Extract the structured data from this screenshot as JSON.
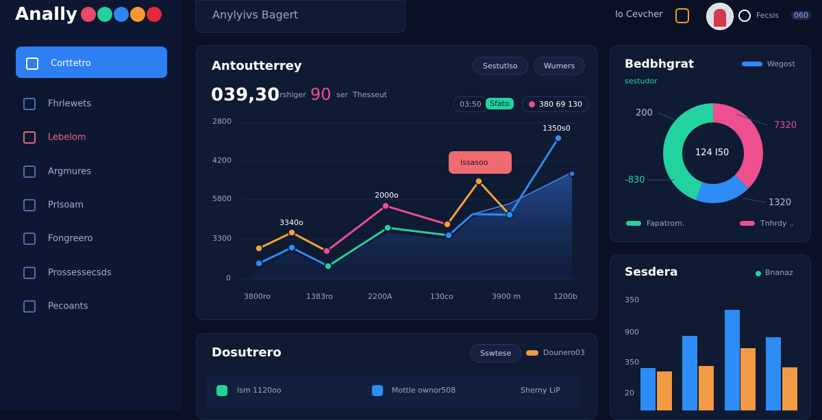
{
  "brand": "Anally",
  "search": "Anylyivs Bagert",
  "header": {
    "user": "Io Cevcher",
    "account": "Fecsis",
    "badge": "060"
  },
  "sidebar": [
    "Corttetro",
    "Fhrlewets",
    "Lebelom",
    "Argmures",
    "Prlsoam",
    "Fongreero",
    "Prossessecsds",
    "Pecoants"
  ],
  "main_card": {
    "title": "Antoutterrey",
    "tabs": [
      "Sestutlso",
      "Wumers"
    ],
    "big_value": "039,30",
    "subtitle": [
      "Irshiger",
      "90",
      "ser",
      "Thesseut"
    ],
    "chips": [
      "03:50",
      "Sfato",
      "380 69 130"
    ],
    "y_labels": [
      "2800",
      "4200",
      "5800",
      "3300",
      "0"
    ],
    "x_labels": [
      "3800ro",
      "1383ro",
      "2200A",
      "130co",
      "3900 m",
      "1200b"
    ],
    "point_labels": [
      "3340o",
      "2000o",
      "lssasoo",
      "1350s0"
    ]
  },
  "donut_card": {
    "title": "Bedbhgrat",
    "legend": "Wegost",
    "subtitle": "sestudor",
    "center": "124 I50",
    "labels": [
      "200",
      "7320",
      "-830",
      "1320"
    ],
    "bottom_legend": [
      "Fapatrom.",
      "Tnhrdy .."
    ]
  },
  "bar_card": {
    "title": "Sesdera",
    "legend": "Bnanaz",
    "y_labels": [
      "350",
      "900",
      "350",
      "20"
    ]
  },
  "bottom_card": {
    "title": "Dosutrero",
    "chip": "Sswtese",
    "legend": "Dounero03",
    "row": [
      "Ism 1120oo",
      "Mottle ownor508",
      "Sherny LiP"
    ]
  }
}
